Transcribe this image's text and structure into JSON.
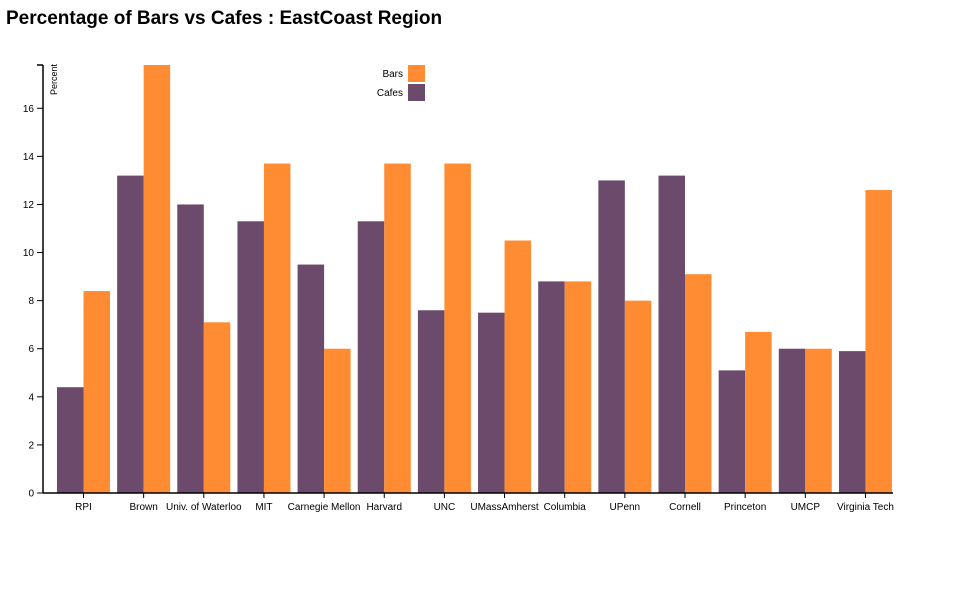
{
  "chart_data": {
    "type": "bar",
    "title": "Percentage of Bars vs Cafes : EastCoast Region",
    "xlabel": "",
    "ylabel": "Percent",
    "ylim": [
      0,
      17.8
    ],
    "yticks": [
      0,
      2,
      4,
      6,
      8,
      10,
      12,
      14,
      16
    ],
    "categories": [
      "RPI",
      "Brown",
      "Univ. of Waterloo",
      "MIT",
      "Carnegie Mellon",
      "Harvard",
      "UNC",
      "UMassAmherst",
      "Columbia",
      "UPenn",
      "Cornell",
      "Princeton",
      "UMCP",
      "Virginia Tech"
    ],
    "series": [
      {
        "name": "Cafes",
        "color": "#6b4a6b",
        "values": [
          4.4,
          13.2,
          12.0,
          11.3,
          9.5,
          11.3,
          7.6,
          7.5,
          8.8,
          13.0,
          13.2,
          5.1,
          6.0,
          5.9
        ]
      },
      {
        "name": "Bars",
        "color": "#ff8c33",
        "values": [
          8.4,
          17.8,
          7.1,
          13.7,
          6.0,
          13.7,
          13.7,
          10.5,
          8.8,
          8.0,
          9.1,
          6.7,
          6.0,
          12.6
        ]
      }
    ],
    "legend": {
      "position": "top-center",
      "order": [
        "Bars",
        "Cafes"
      ]
    },
    "grid": false
  }
}
